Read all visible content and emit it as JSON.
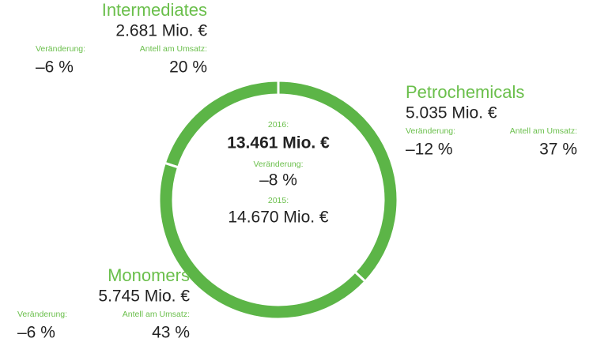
{
  "chart_data": {
    "type": "donut",
    "color": "#5cb547",
    "categories": [
      "Petrochemicals",
      "Monomers",
      "Intermediates"
    ],
    "values": [
      37,
      43,
      20
    ],
    "value_labels": [
      "37 %",
      "43 %",
      "20 %"
    ],
    "revenues": [
      "5.035 Mio. €",
      "5.745 Mio. €",
      "2.681 Mio. €"
    ],
    "changes": [
      "–12 %",
      "–6 %",
      "–6 %"
    ],
    "change_label": "Veränderung:",
    "share_label": "Antell am Umsatz:",
    "center": {
      "year_current": "2016:",
      "total_current": "13.461 Mio. €",
      "change_label": "Veränderung:",
      "change": "–8 %",
      "year_previous": "2015:",
      "total_previous": "14.670 Mio. €"
    }
  }
}
